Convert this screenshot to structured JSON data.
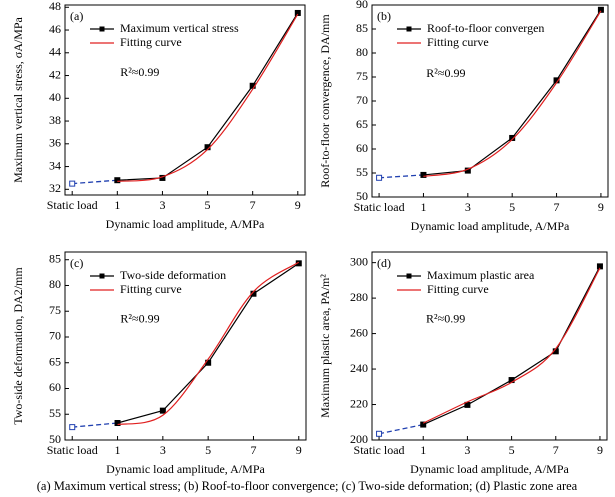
{
  "chart_data": [
    {
      "type": "line",
      "panel_label": "(a)",
      "annotation": "R²≈0.99",
      "x_label": "Dynamic load amplitude, A/MPa",
      "y_label": "Maximum vertical stress, σA/MPa",
      "categories": [
        "Static load",
        "1",
        "3",
        "5",
        "7",
        "9"
      ],
      "ylim": [
        31.5,
        48.2
      ],
      "yticks": [
        32,
        34,
        36,
        38,
        40,
        42,
        44,
        46,
        48
      ],
      "legend": "upper left",
      "series": [
        {
          "name": "Maximum vertical stress",
          "color": "#000000",
          "static_color": "#2040b0",
          "values": [
            32.5,
            32.8,
            33.0,
            35.7,
            41.1,
            47.5
          ]
        },
        {
          "name": "Fitting curve",
          "color": "#e02020",
          "values": [
            null,
            32.7,
            33.1,
            35.5,
            40.8,
            47.4
          ]
        }
      ]
    },
    {
      "type": "line",
      "panel_label": "(b)",
      "annotation": "R²≈0.99",
      "x_label": "Dynamic load amplitude, A/MPa",
      "y_label": "Roof-to-floor convergence, DA/mm",
      "categories": [
        "Static load",
        "1",
        "3",
        "5",
        "7",
        "9"
      ],
      "ylim": [
        50,
        90
      ],
      "yticks": [
        50,
        55,
        60,
        65,
        70,
        75,
        80,
        85,
        90
      ],
      "legend": "upper left",
      "series": [
        {
          "name": "Roof-to-floor convergen",
          "color": "#000000",
          "static_color": "#2040b0",
          "values": [
            54.0,
            54.6,
            55.5,
            62.3,
            74.3,
            89.0
          ]
        },
        {
          "name": "Fitting curve",
          "color": "#e02020",
          "values": [
            null,
            54.3,
            55.8,
            62.0,
            73.8,
            88.8
          ]
        }
      ]
    },
    {
      "type": "line",
      "panel_label": "(c)",
      "annotation": "R²≈0.99",
      "x_label": "Dynamic load amplitude, A/MPa",
      "y_label": "Two-side deformation, DA2/mm",
      "categories": [
        "Static load",
        "1",
        "3",
        "5",
        "7",
        "9"
      ],
      "ylim": [
        50,
        86.5
      ],
      "yticks": [
        50,
        55,
        60,
        65,
        70,
        75,
        80,
        85
      ],
      "legend": "upper left",
      "series": [
        {
          "name": "Two-side deformation",
          "color": "#000000",
          "static_color": "#2040b0",
          "values": [
            52.5,
            53.3,
            55.7,
            65.0,
            78.4,
            84.3
          ]
        },
        {
          "name": "Fitting curve",
          "color": "#e02020",
          "values": [
            null,
            53.0,
            54.8,
            65.7,
            78.8,
            84.5
          ]
        }
      ]
    },
    {
      "type": "line",
      "panel_label": "(d)",
      "annotation": "R²≈0.99",
      "x_label": "Dynamic load amplitude, A/MPa",
      "y_label": "Maximum plastic area, PA/m²",
      "categories": [
        "Static load",
        "1",
        "3",
        "5",
        "7",
        "9"
      ],
      "ylim": [
        200,
        306
      ],
      "yticks": [
        200,
        220,
        240,
        260,
        280,
        300
      ],
      "legend": "upper left",
      "series": [
        {
          "name": "Maximum plastic area",
          "color": "#000000",
          "static_color": "#2040b0",
          "values": [
            203.5,
            208.7,
            219.8,
            233.8,
            250.0,
            297.9
          ]
        },
        {
          "name": "Fitting curve",
          "color": "#e02020",
          "values": [
            null,
            209.5,
            221.5,
            232.5,
            251.5,
            297.0
          ]
        }
      ]
    }
  ],
  "caption": "(a) Maximum vertical stress; (b) Roof-to-floor convergence; (c) Two-side deformation; (d) Plastic zone area"
}
